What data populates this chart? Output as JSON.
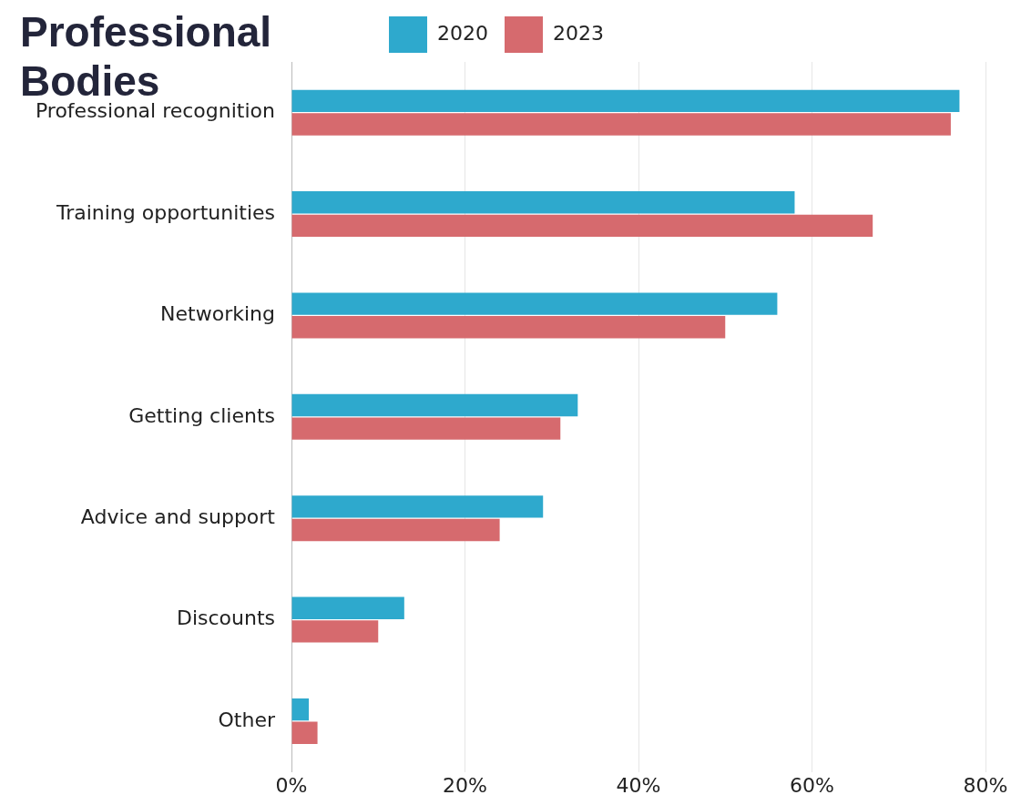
{
  "chart_data": {
    "type": "bar",
    "orientation": "horizontal",
    "title": "Professional Bodies",
    "categories": [
      "Professional recognition",
      "Training opportunities",
      "Networking",
      "Getting clients",
      "Advice and support",
      "Discounts",
      "Other"
    ],
    "series": [
      {
        "name": "2020",
        "color": "#2ea9cd",
        "values": [
          77,
          58,
          56,
          33,
          29,
          13,
          2
        ]
      },
      {
        "name": "2023",
        "color": "#d66a6e",
        "values": [
          76,
          67,
          50,
          31,
          24,
          10,
          3
        ]
      }
    ],
    "xlim": [
      0,
      80
    ],
    "xticks": [
      {
        "value": 0,
        "label": "0%"
      },
      {
        "value": 20,
        "label": "20%"
      },
      {
        "value": 40,
        "label": "40%"
      },
      {
        "value": 60,
        "label": "60%"
      },
      {
        "value": 80,
        "label": "80%"
      }
    ],
    "grid": "x",
    "legend": "top"
  }
}
